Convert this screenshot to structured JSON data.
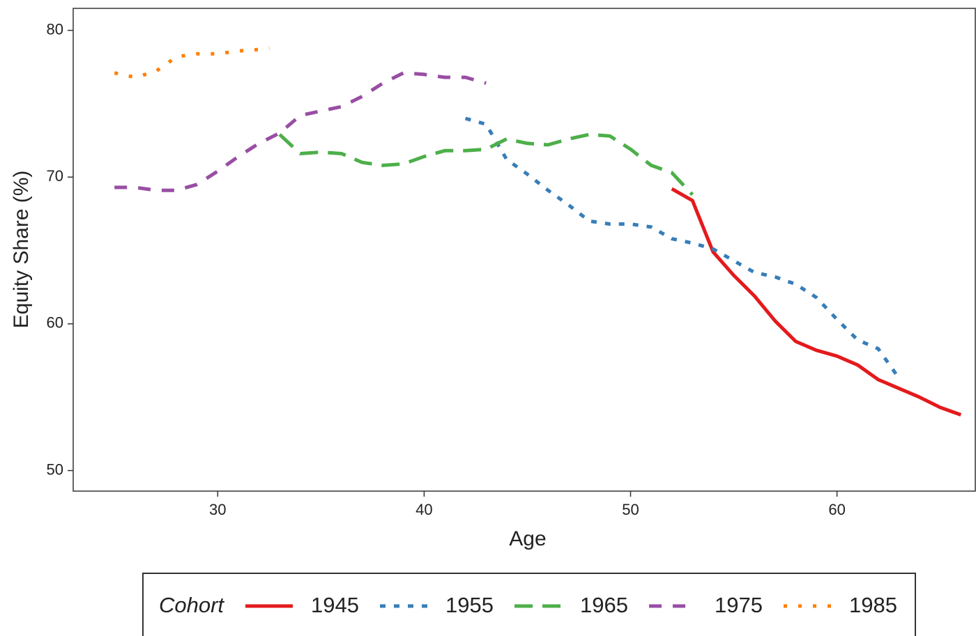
{
  "chart_data": {
    "type": "line",
    "x_label": "Age",
    "y_label": "Equity Share (%)",
    "xlim": [
      23,
      66.7
    ],
    "ylim": [
      48.6,
      81.5
    ],
    "xticks": [
      30,
      40,
      50,
      60
    ],
    "yticks": [
      50,
      60,
      70,
      80
    ],
    "legend_title": "Cohort",
    "legend_position": "bottom",
    "grid": false,
    "series": [
      {
        "name": "1945",
        "color": "#e41a1c",
        "linestyle": "solid",
        "x": [
          52,
          53,
          54,
          55,
          56,
          57,
          58,
          59,
          60,
          61,
          62,
          63,
          64,
          65,
          66
        ],
        "values": [
          69.2,
          68.4,
          64.9,
          63.3,
          61.9,
          60.2,
          58.8,
          58.2,
          57.8,
          57.2,
          56.2,
          55.6,
          55.0,
          54.3,
          53.8
        ]
      },
      {
        "name": "1955",
        "color": "#377eb8",
        "linestyle": "dotted",
        "x": [
          42,
          43,
          44,
          45,
          46,
          47,
          48,
          49,
          50,
          51,
          52,
          53,
          54,
          55,
          56,
          57,
          58,
          59,
          60,
          61,
          62,
          63
        ],
        "values": [
          74.0,
          73.6,
          71.2,
          70.2,
          69.1,
          68.1,
          67.0,
          66.8,
          66.8,
          66.6,
          65.8,
          65.5,
          65.1,
          64.3,
          63.5,
          63.2,
          62.7,
          61.8,
          60.3,
          58.9,
          58.3,
          56.3
        ]
      },
      {
        "name": "1965",
        "color": "#4daf4a",
        "linestyle": "dashed",
        "x": [
          33,
          34,
          35,
          36,
          37,
          38,
          39,
          40,
          41,
          42,
          43,
          44,
          45,
          46,
          47,
          48,
          49,
          50,
          51,
          52,
          53
        ],
        "values": [
          72.9,
          71.6,
          71.7,
          71.6,
          71.0,
          70.8,
          70.9,
          71.4,
          71.8,
          71.8,
          71.9,
          72.6,
          72.3,
          72.2,
          72.6,
          72.9,
          72.8,
          71.9,
          70.8,
          70.3,
          68.8
        ]
      },
      {
        "name": "1975",
        "color": "#984ea3",
        "linestyle": "longdash",
        "x": [
          25,
          26,
          27,
          28,
          29,
          30,
          31,
          32,
          33,
          34,
          35,
          36,
          37,
          38,
          39,
          40,
          41,
          42,
          43
        ],
        "values": [
          69.3,
          69.3,
          69.1,
          69.1,
          69.5,
          70.4,
          71.4,
          72.3,
          73.0,
          74.2,
          74.5,
          74.8,
          75.5,
          76.4,
          77.1,
          77.0,
          76.8,
          76.8,
          76.4
        ]
      },
      {
        "name": "1985",
        "color": "#ff7f00",
        "linestyle": "dotted2",
        "x": [
          25,
          26,
          27,
          28,
          29,
          30,
          31,
          32,
          32.5
        ],
        "values": [
          77.1,
          76.8,
          77.2,
          78.2,
          78.4,
          78.4,
          78.6,
          78.7,
          78.8
        ]
      }
    ]
  }
}
